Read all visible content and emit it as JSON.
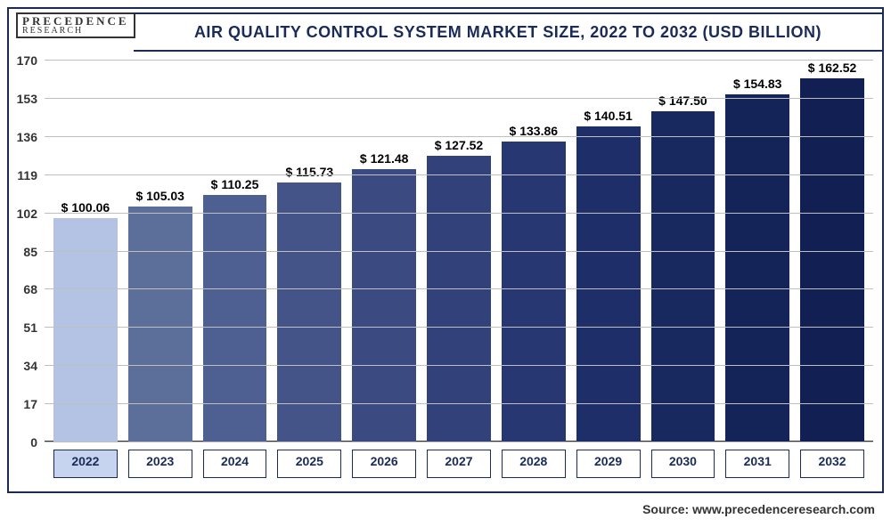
{
  "logo": {
    "line1": "PRECEDENCE",
    "line2": "RESEARCH"
  },
  "title": "AIR QUALITY CONTROL SYSTEM MARKET SIZE, 2022 TO 2032 (USD BILLION)",
  "source_label": "Source: www.precedenceresearch.com",
  "chart": {
    "type": "bar",
    "categories": [
      "2022",
      "2023",
      "2024",
      "2025",
      "2026",
      "2027",
      "2028",
      "2029",
      "2030",
      "2031",
      "2032"
    ],
    "values": [
      100.06,
      105.03,
      110.25,
      115.73,
      121.48,
      127.52,
      133.86,
      140.51,
      147.5,
      154.83,
      162.52
    ],
    "value_labels": [
      "$ 100.06",
      "$ 105.03",
      "$ 110.25",
      "$ 115.73",
      "$ 121.48",
      "$ 127.52",
      "$ 133.86",
      "$ 140.51",
      "$ 147.50",
      "$ 154.83",
      "$ 162.52"
    ],
    "bar_colors": [
      "#b4c3e4",
      "#5c6e9a",
      "#4e5f91",
      "#445489",
      "#3b4b82",
      "#32417a",
      "#263771",
      "#1d2e68",
      "#17295f",
      "#142358",
      "#111f52"
    ],
    "highlight_index": 0,
    "ylim": [
      0,
      170
    ],
    "ytick_step": 17,
    "yticks": [
      0,
      17,
      34,
      51,
      68,
      85,
      102,
      119,
      136,
      153,
      170
    ],
    "background_color": "#ffffff",
    "grid_color": "#bfbfbf",
    "axis_color": "#333333",
    "title_color": "#1a2b57",
    "title_fontsize": 18,
    "label_fontsize": 14,
    "value_fontsize": 14,
    "border_color": "#1a2b57",
    "bar_width": 0.74
  }
}
